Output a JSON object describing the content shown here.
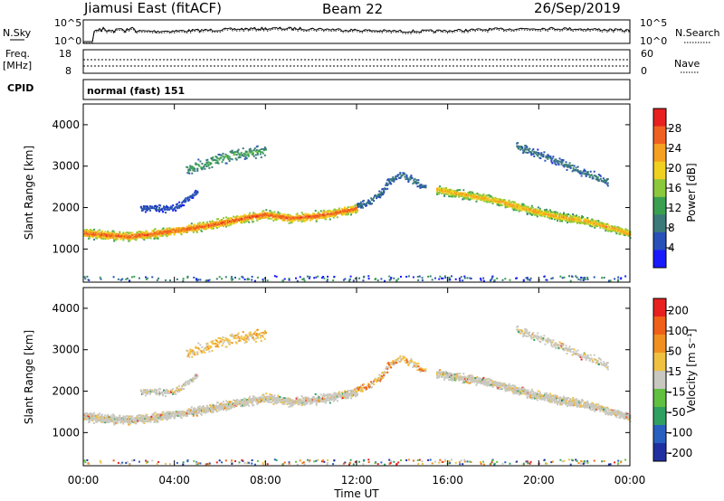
{
  "header": {
    "station": "Jiamusi East (fitACF)",
    "beam": "Beam 22",
    "date": "26/Sep/2019"
  },
  "strip_labels": {
    "nsky": "N.Sky",
    "nsearch": "N.Search",
    "freq_line1": "Freq.",
    "freq_line2": "[MHz]",
    "nave": "Nave",
    "cpid": "CPID",
    "cpid_value": "normal (fast) 151"
  },
  "noise_axis": {
    "left_ticks": [
      "10^5",
      "10^0"
    ],
    "right_ticks": [
      "10^5",
      "10^0"
    ]
  },
  "freq_axis": {
    "left_ticks": [
      "18",
      "8"
    ],
    "right_ticks": [
      "60",
      "0"
    ]
  },
  "chart_data": [
    {
      "type": "heatmap",
      "panel": "power",
      "xlabel": "",
      "ylabel": "Slant Range [km]",
      "x_range_hours": [
        0,
        24
      ],
      "ylim": [
        200,
        4500
      ],
      "y_ticks": [
        "1000",
        "2000",
        "3000",
        "4000"
      ],
      "colorbar_label": "Power [dB]",
      "colorbar_ticks": [
        "4",
        "8",
        "12",
        "16",
        "20",
        "24",
        "28"
      ],
      "colorbar_range": [
        0,
        30
      ],
      "colors": [
        "#1a1aff",
        "#2850b8",
        "#3a7a7a",
        "#3aa050",
        "#8cc83c",
        "#f0d020",
        "#f5a020",
        "#f06020",
        "#e82020"
      ],
      "bands": [
        {
          "name": "main",
          "points": [
            [
              0,
              1400
            ],
            [
              1,
              1350
            ],
            [
              2,
              1320
            ],
            [
              3,
              1380
            ],
            [
              4,
              1460
            ],
            [
              5,
              1540
            ],
            [
              6,
              1640
            ],
            [
              7,
              1760
            ],
            [
              8,
              1850
            ],
            [
              9,
              1760
            ],
            [
              10,
              1800
            ],
            [
              11,
              1880
            ],
            [
              12,
              2000
            ]
          ],
          "width": 150,
          "peak_db": 26
        },
        {
          "name": "late",
          "points": [
            [
              15.5,
              2450
            ],
            [
              16,
              2400
            ],
            [
              17,
              2300
            ],
            [
              18,
              2200
            ],
            [
              19,
              2050
            ],
            [
              20,
              1900
            ],
            [
              21,
              1780
            ],
            [
              22,
              1700
            ],
            [
              23,
              1550
            ],
            [
              24,
              1380
            ]
          ],
          "width": 140,
          "peak_db": 22
        },
        {
          "name": "upper",
          "points": [
            [
              4.5,
              2950
            ],
            [
              5.5,
              3100
            ],
            [
              6.5,
              3300
            ],
            [
              7.5,
              3350
            ],
            [
              8,
              3400
            ]
          ],
          "width": 220,
          "peak_db": 12
        },
        {
          "name": "rise",
          "points": [
            [
              12,
              2050
            ],
            [
              12.5,
              2150
            ],
            [
              13,
              2350
            ],
            [
              13.5,
              2700
            ],
            [
              14,
              2800
            ],
            [
              14.5,
              2650
            ],
            [
              15,
              2500
            ]
          ],
          "width": 150,
          "peak_db": 8
        },
        {
          "name": "upper-late",
          "points": [
            [
              19,
              3500
            ],
            [
              20,
              3300
            ],
            [
              21,
              3100
            ],
            [
              22,
              2850
            ],
            [
              23,
              2650
            ]
          ],
          "width": 140,
          "peak_db": 9
        },
        {
          "name": "echo",
          "points": [
            [
              2.5,
              2000
            ],
            [
              4,
              2000
            ],
            [
              5,
              2400
            ]
          ],
          "width": 120,
          "peak_db": 6
        }
      ]
    },
    {
      "type": "heatmap",
      "panel": "velocity",
      "xlabel": "Time UT",
      "ylabel": "Slant Range [km]",
      "x_range_hours": [
        0,
        24
      ],
      "x_ticks": [
        "00:00",
        "04:00",
        "08:00",
        "12:00",
        "16:00",
        "20:00",
        "00:00"
      ],
      "ylim": [
        200,
        4500
      ],
      "y_ticks": [
        "1000",
        "2000",
        "3000",
        "4000"
      ],
      "colorbar_label": "Velocity [m s⁻¹]",
      "colorbar_ticks": [
        "200",
        "100",
        "50",
        "15",
        "-15",
        "-50",
        "-100",
        "-200"
      ],
      "colors": [
        "#2030a0",
        "#2860c0",
        "#30a060",
        "#60c040",
        "#c8c8c0",
        "#f0c040",
        "#f09020",
        "#f06018",
        "#e82020"
      ]
    }
  ]
}
